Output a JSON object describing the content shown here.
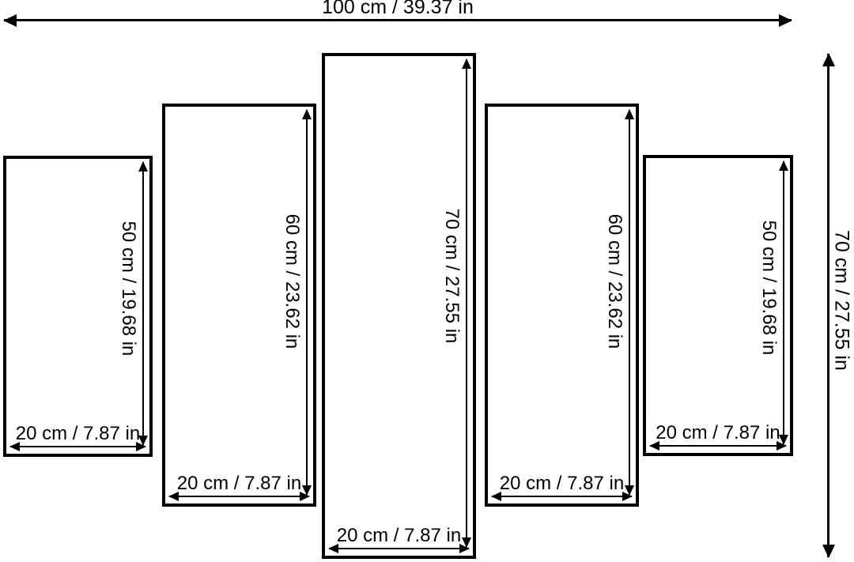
{
  "figure": {
    "background": "#ffffff",
    "line_color": "#000000",
    "total_width": {
      "label": "100 cm / 39.37 in",
      "cm": 100,
      "in": 39.37
    },
    "total_height": {
      "label": "70 cm / 27.55 in",
      "cm": 70,
      "in": 27.55
    },
    "panels": [
      {
        "height": {
          "label": "50 cm / 19.68 in",
          "cm": 50,
          "in": 19.68
        },
        "width": {
          "label": "20 cm / 7.87 in",
          "cm": 20,
          "in": 7.87
        }
      },
      {
        "height": {
          "label": "60 cm / 23.62 in",
          "cm": 60,
          "in": 23.62
        },
        "width": {
          "label": "20 cm / 7.87 in",
          "cm": 20,
          "in": 7.87
        }
      },
      {
        "height": {
          "label": "70 cm / 27.55 in",
          "cm": 70,
          "in": 27.55
        },
        "width": {
          "label": "20 cm / 7.87 in",
          "cm": 20,
          "in": 7.87
        }
      },
      {
        "height": {
          "label": "60 cm / 23.62 in",
          "cm": 60,
          "in": 23.62
        },
        "width": {
          "label": "20 cm / 7.87 in",
          "cm": 20,
          "in": 7.87
        }
      },
      {
        "height": {
          "label": "50 cm / 19.68 in",
          "cm": 50,
          "in": 19.68
        },
        "width": {
          "label": "20 cm / 7.87 in",
          "cm": 20,
          "in": 7.87
        }
      }
    ]
  }
}
